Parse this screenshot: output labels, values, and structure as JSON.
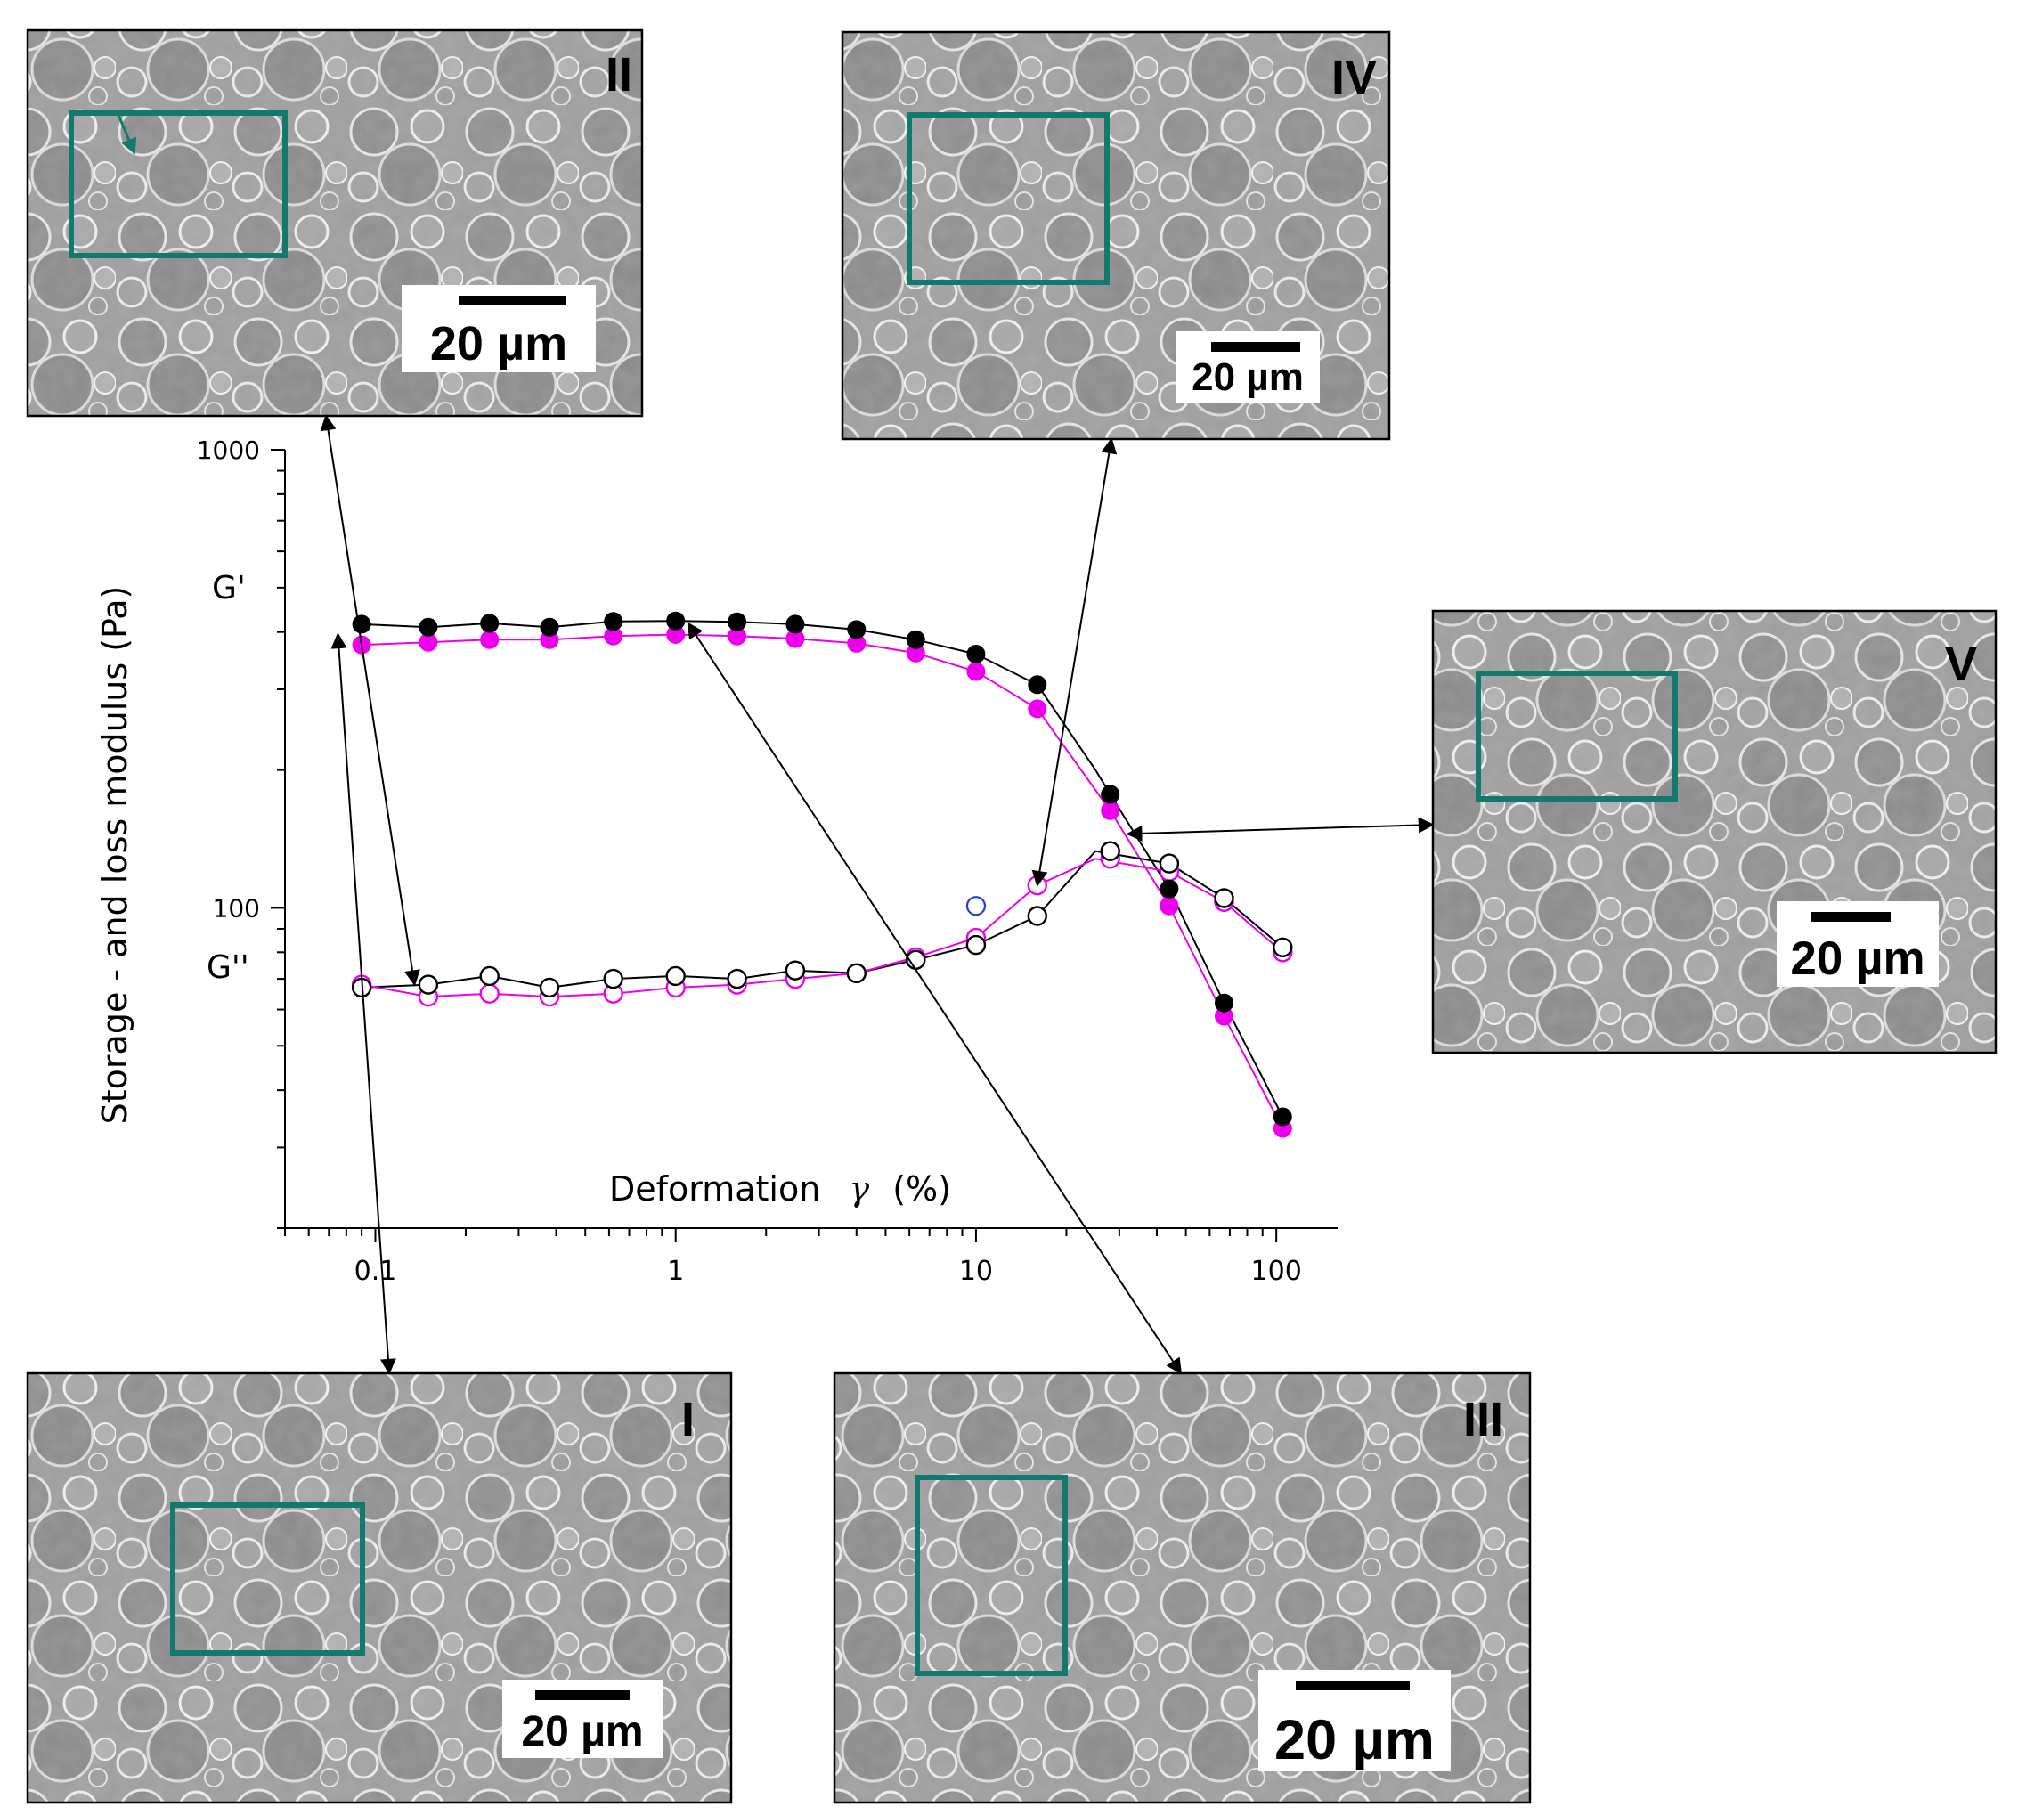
{
  "colors": {
    "series_black": "#000000",
    "series_magenta": "#ee00ee",
    "outlier_blue": "#1f3fd6",
    "roi_box": "#137a6b",
    "micrograph_bg": "#a8a8a8"
  },
  "chart_data": {
    "type": "scatter",
    "xlabel": "Deformation",
    "xlabel_symbol": "γ",
    "xlabel_unit": "(%)",
    "ylabel": "Storage - and loss modulus (Pa)",
    "x_scale": "log",
    "y_scale": "log",
    "xlim": [
      0.05,
      160
    ],
    "ylim": [
      20,
      1000
    ],
    "x_ticks": [
      {
        "value": 0.1,
        "label": "0.1"
      },
      {
        "value": 1,
        "label": "1"
      },
      {
        "value": 10,
        "label": "10"
      },
      {
        "value": 100,
        "label": "100"
      }
    ],
    "y_ticks": [
      {
        "value": 100,
        "label": "100"
      },
      {
        "value": 1000,
        "label": "1000"
      }
    ],
    "curve_labels": [
      {
        "text": "G'",
        "at_value": 570
      },
      {
        "text": "G''",
        "at_value": 86
      }
    ],
    "x": [
      0.09,
      0.15,
      0.24,
      0.38,
      0.62,
      1.0,
      1.6,
      2.5,
      4.0,
      6.3,
      10,
      16,
      28,
      44,
      67,
      105
    ],
    "series": [
      {
        "marker": "filled",
        "color": "black",
        "values": [
          416,
          410,
          418,
          410,
          422,
          423,
          421,
          416,
          405,
          385,
          358,
          307,
          177,
          110,
          62,
          35
        ],
        "line": "#000000",
        "line_extra": [
          {
            "x": 25,
            "y": 200
          }
        ]
      },
      {
        "marker": "filled",
        "color": "magenta",
        "values": [
          375,
          380,
          385,
          385,
          392,
          395,
          392,
          387,
          378,
          360,
          328,
          272,
          163,
          101,
          58,
          33
        ],
        "line": "#ee00ee"
      },
      {
        "marker": "open",
        "color": "black",
        "values": [
          67,
          68,
          71,
          67,
          70,
          71,
          70,
          73,
          72,
          77,
          83,
          96,
          133,
          125,
          105,
          82
        ],
        "line": "#000000",
        "line_x": [
          0.09,
          0.15,
          0.24,
          0.38,
          0.62,
          1.0,
          1.6,
          2.5,
          4.0,
          6.3,
          10,
          16,
          25,
          44,
          67,
          105
        ]
      },
      {
        "marker": "open",
        "color": "magenta",
        "values": [
          68,
          64,
          65,
          64,
          65,
          67,
          68,
          70,
          72,
          78,
          86,
          112,
          128,
          120,
          103,
          80
        ],
        "line": "#ee00ee",
        "line_x": [
          0.09,
          0.15,
          0.24,
          0.38,
          0.62,
          1.0,
          1.6,
          2.5,
          4.0,
          6.3,
          10,
          16,
          25,
          44,
          67,
          105
        ]
      }
    ],
    "outliers": [
      {
        "x": 10,
        "y": 101,
        "color": "blue",
        "marker": "open"
      }
    ],
    "grid": false
  },
  "micrographs": [
    {
      "label": "II",
      "scale_text": "20  µm",
      "points_to": {
        "x": 0.135,
        "y": 68
      }
    },
    {
      "label": "IV",
      "scale_text": "20  µm",
      "points_to": {
        "x": 16,
        "y": 112
      }
    },
    {
      "label": "V",
      "scale_text": "20  µm",
      "points_to": {
        "x": 32,
        "y": 145
      }
    },
    {
      "label": "I",
      "scale_text": "20  µm",
      "points_to": {
        "x": 0.075,
        "y": 396
      }
    },
    {
      "label": "III",
      "scale_text": "20  µm",
      "points_to": {
        "x": 1.1,
        "y": 418
      }
    }
  ]
}
